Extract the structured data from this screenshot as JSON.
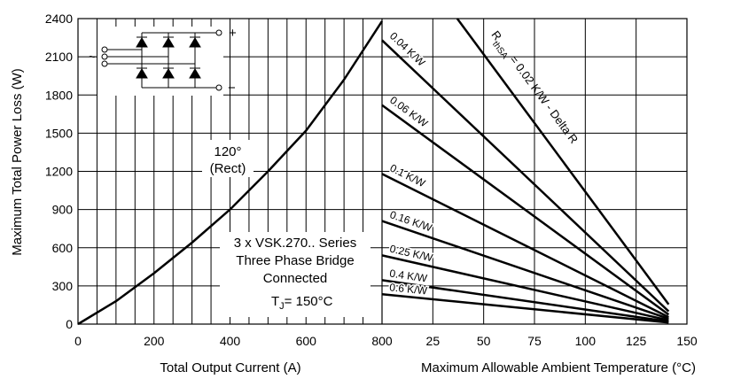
{
  "chart_data": [
    {
      "type": "line",
      "ylabel": "Maximum Total Power Loss (W)",
      "xlabel": "Total Output Current (A)",
      "xlim": [
        0,
        800
      ],
      "ylim": [
        0,
        2400
      ],
      "x_ticks": [
        "0",
        "200",
        "400",
        "600",
        "800"
      ],
      "y_ticks": [
        "0",
        "300",
        "600",
        "900",
        "1200",
        "1500",
        "1800",
        "2100",
        "2400"
      ],
      "grid": true,
      "series": [
        {
          "x": [
            0,
            100,
            200,
            300,
            400,
            500,
            600,
            700,
            800
          ],
          "y": [
            0,
            180,
            400,
            640,
            900,
            1200,
            1520,
            1920,
            2380
          ]
        }
      ],
      "annotations": {
        "conduction": [
          "120°",
          "(Rect)"
        ],
        "device": [
          "3 x VSK.270.. Series",
          "Three Phase Bridge",
          "Connected"
        ],
        "tj": {
          "prefix": "T",
          "sub": "J",
          "suffix": "= 150°C"
        }
      }
    },
    {
      "type": "line",
      "xlabel": "Maximum Allowable Ambient Temperature (°C)",
      "xlim": [
        0,
        150
      ],
      "ylim": [
        0,
        2400
      ],
      "x_ticks": [
        "25",
        "50",
        "75",
        "100",
        "125",
        "150"
      ],
      "grid": true,
      "series": [
        {
          "name": "R thSA = 0.02 K/W - Delta R",
          "x": [
            37,
            141
          ],
          "y": [
            2400,
            155
          ]
        },
        {
          "name": "0.04 K/W",
          "x": [
            0,
            141
          ],
          "y": [
            2230,
            100
          ]
        },
        {
          "name": "0.06 K/W",
          "x": [
            0,
            141
          ],
          "y": [
            1720,
            75
          ]
        },
        {
          "name": "0.1 K/W",
          "x": [
            0,
            141
          ],
          "y": [
            1180,
            55
          ]
        },
        {
          "name": "0.16 K/W",
          "x": [
            0,
            141
          ],
          "y": [
            810,
            42
          ]
        },
        {
          "name": "0.25 K/W",
          "x": [
            0,
            141
          ],
          "y": [
            540,
            30
          ]
        },
        {
          "name": "0.4 K/W",
          "x": [
            0,
            141
          ],
          "y": [
            345,
            20
          ]
        },
        {
          "name": "0.6 K/W",
          "x": [
            0,
            141
          ],
          "y": [
            235,
            12
          ]
        }
      ],
      "rthsa_label": {
        "r": "R",
        "sub": "thSA",
        "rest": "= 0.02 K/W - Delta R"
      }
    }
  ],
  "inset": {
    "plus": "+",
    "minus": "−",
    "ac": "~"
  }
}
